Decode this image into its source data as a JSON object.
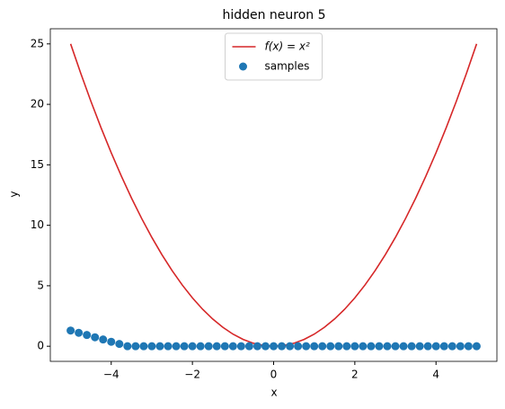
{
  "chart_data": {
    "type": "line",
    "title": "hidden neuron 5",
    "xlabel": "x",
    "ylabel": "y",
    "xlim": [
      -5.5,
      5.5
    ],
    "ylim": [
      -1.25,
      26.25
    ],
    "xticks": [
      {
        "value": -4,
        "label": "−4"
      },
      {
        "value": -2,
        "label": "−2"
      },
      0,
      2,
      4
    ],
    "yticks": [
      0,
      5,
      10,
      15,
      20,
      25
    ],
    "grid": false,
    "legend": "upper center",
    "series": [
      {
        "name": "f(x) = x²",
        "type": "line",
        "color": "#d62728",
        "x": [
          -5,
          -4.75,
          -4.5,
          -4.25,
          -4,
          -3.75,
          -3.5,
          -3.25,
          -3,
          -2.75,
          -2.5,
          -2.25,
          -2,
          -1.75,
          -1.5,
          -1.25,
          -1,
          -0.75,
          -0.5,
          -0.25,
          0,
          0.25,
          0.5,
          0.75,
          1,
          1.25,
          1.5,
          1.75,
          2,
          2.25,
          2.5,
          2.75,
          3,
          3.25,
          3.5,
          3.75,
          4,
          4.25,
          4.5,
          4.75,
          5
        ],
        "values": [
          25,
          22.5625,
          20.25,
          18.0625,
          16,
          14.0625,
          12.25,
          10.5625,
          9,
          7.5625,
          6.25,
          5.0625,
          4,
          3.0625,
          2.25,
          1.5625,
          1,
          0.5625,
          0.25,
          0.0625,
          0,
          0.0625,
          0.25,
          0.5625,
          1,
          1.5625,
          2.25,
          3.0625,
          4,
          5.0625,
          6.25,
          7.5625,
          9,
          10.5625,
          12.25,
          14.0625,
          16,
          18.0625,
          20.25,
          22.5625,
          25
        ]
      },
      {
        "name": "samples",
        "type": "scatter",
        "color": "#1f77b4",
        "x": [
          -5,
          -4.8,
          -4.6,
          -4.4,
          -4.2,
          -4,
          -3.8,
          -3.6,
          -3.4,
          -3.2,
          -3,
          -2.8,
          -2.6,
          -2.4,
          -2.2,
          -2,
          -1.8,
          -1.6,
          -1.4,
          -1.2,
          -1,
          -0.8,
          -0.6,
          -0.4,
          -0.2,
          0,
          0.2,
          0.4,
          0.6,
          0.8,
          1,
          1.2,
          1.4,
          1.6,
          1.8,
          2,
          2.2,
          2.4,
          2.6,
          2.8,
          3,
          3.2,
          3.4,
          3.6,
          3.8,
          4,
          4.2,
          4.4,
          4.6,
          4.8,
          5
        ],
        "values": [
          1.3,
          1.11,
          0.93,
          0.74,
          0.56,
          0.37,
          0.19,
          0,
          0,
          0,
          0,
          0,
          0,
          0,
          0,
          0,
          0,
          0,
          0,
          0,
          0,
          0,
          0,
          0,
          0,
          0,
          0,
          0,
          0,
          0,
          0,
          0,
          0,
          0,
          0,
          0,
          0,
          0,
          0,
          0,
          0,
          0,
          0,
          0,
          0,
          0,
          0,
          0,
          0,
          0,
          0
        ]
      }
    ]
  }
}
